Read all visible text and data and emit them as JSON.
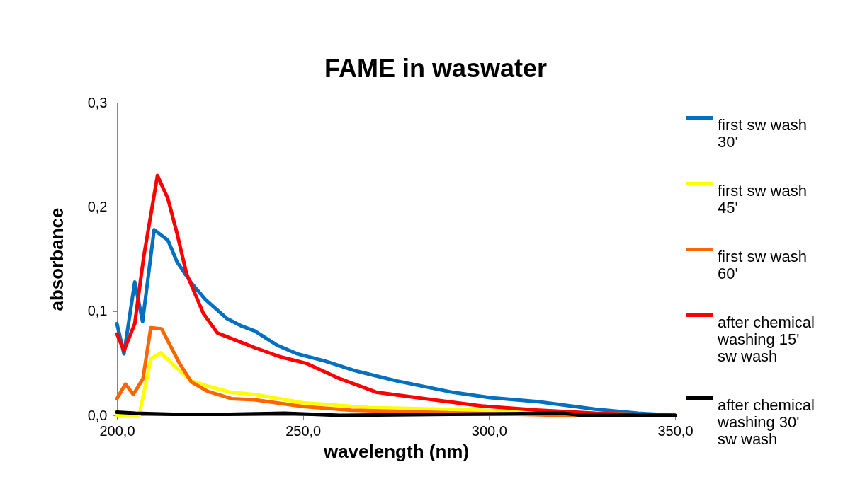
{
  "chart_data": {
    "type": "line",
    "title": "FAME in waswater",
    "xlabel": "wavelength (nm)",
    "ylabel": "absorbance",
    "xlim": [
      200,
      350
    ],
    "xticks": [
      {
        "value": 200,
        "label": "200,0"
      },
      {
        "value": 250,
        "label": "250,0"
      },
      {
        "value": 300,
        "label": "300,0"
      },
      {
        "value": 350,
        "label": "350,0"
      }
    ],
    "ylim": [
      0,
      0.3
    ],
    "yticks": [
      {
        "value": 0,
        "label": "0,0"
      },
      {
        "value": 0.1,
        "label": "0,1"
      },
      {
        "value": 0.2,
        "label": "0,2"
      },
      {
        "value": 0.3,
        "label": "0,3"
      }
    ],
    "grid": false,
    "legend": "right",
    "marker": "none",
    "line_style": "solid",
    "series": [
      {
        "name": "first sw wash 30'",
        "color": "#0070c0",
        "x": [
          200,
          201.9,
          204.8,
          206.9,
          210,
          213.7,
          216.2,
          220,
          223.8,
          229.5,
          233.3,
          237,
          243.2,
          248.5,
          256,
          263.8,
          275.2,
          290.4,
          300.3,
          313.3,
          328.5,
          340,
          350
        ],
        "values": [
          0.088,
          0.059,
          0.128,
          0.09,
          0.178,
          0.168,
          0.147,
          0.127,
          0.111,
          0.093,
          0.086,
          0.081,
          0.067,
          0.059,
          0.052,
          0.043,
          0.033,
          0.022,
          0.017,
          0.013,
          0.006,
          0.002,
          0.0
        ]
      },
      {
        "name": "first sw wash 45'",
        "color": "#ffff00",
        "x": [
          200,
          206,
          209.1,
          211.8,
          216.2,
          220,
          224.4,
          230.8,
          237,
          250,
          267.6,
          286.6,
          309.5,
          350
        ],
        "values": [
          0.0,
          0.0,
          0.054,
          0.06,
          0.045,
          0.033,
          0.028,
          0.022,
          0.02,
          0.012,
          0.0075,
          0.006,
          0.0035,
          0.0
        ]
      },
      {
        "name": "first sw wash 60'",
        "color": "#ff6600",
        "x": [
          200,
          202.3,
          204.4,
          207,
          209.1,
          212,
          216.8,
          220,
          224.4,
          230.8,
          237,
          250,
          263,
          294,
          320,
          350
        ],
        "values": [
          0.016,
          0.03,
          0.02,
          0.035,
          0.084,
          0.083,
          0.05,
          0.032,
          0.023,
          0.016,
          0.015,
          0.0085,
          0.005,
          0.002,
          0.0,
          0.0
        ]
      },
      {
        "name": "after chemical washing 15' sw wash",
        "color": "#ff0000",
        "x": [
          200,
          201.9,
          204.8,
          207.2,
          210.9,
          213.7,
          216.2,
          218.7,
          223.2,
          227,
          232.7,
          237,
          244,
          250.8,
          260,
          269.9,
          282.8,
          298,
          313.3,
          328.5,
          350
        ],
        "values": [
          0.078,
          0.062,
          0.088,
          0.152,
          0.23,
          0.208,
          0.174,
          0.136,
          0.098,
          0.079,
          0.071,
          0.065,
          0.056,
          0.05,
          0.035,
          0.022,
          0.016,
          0.009,
          0.005,
          0.002,
          0.0
        ]
      },
      {
        "name": "after chemical washing 30' sw wash",
        "color": "#000000",
        "x": [
          200,
          205,
          215,
          230,
          245,
          260,
          320,
          325,
          350
        ],
        "values": [
          0.003,
          0.002,
          0.001,
          0.001,
          0.002,
          0.0,
          0.002,
          0.0,
          0.0
        ]
      }
    ]
  }
}
